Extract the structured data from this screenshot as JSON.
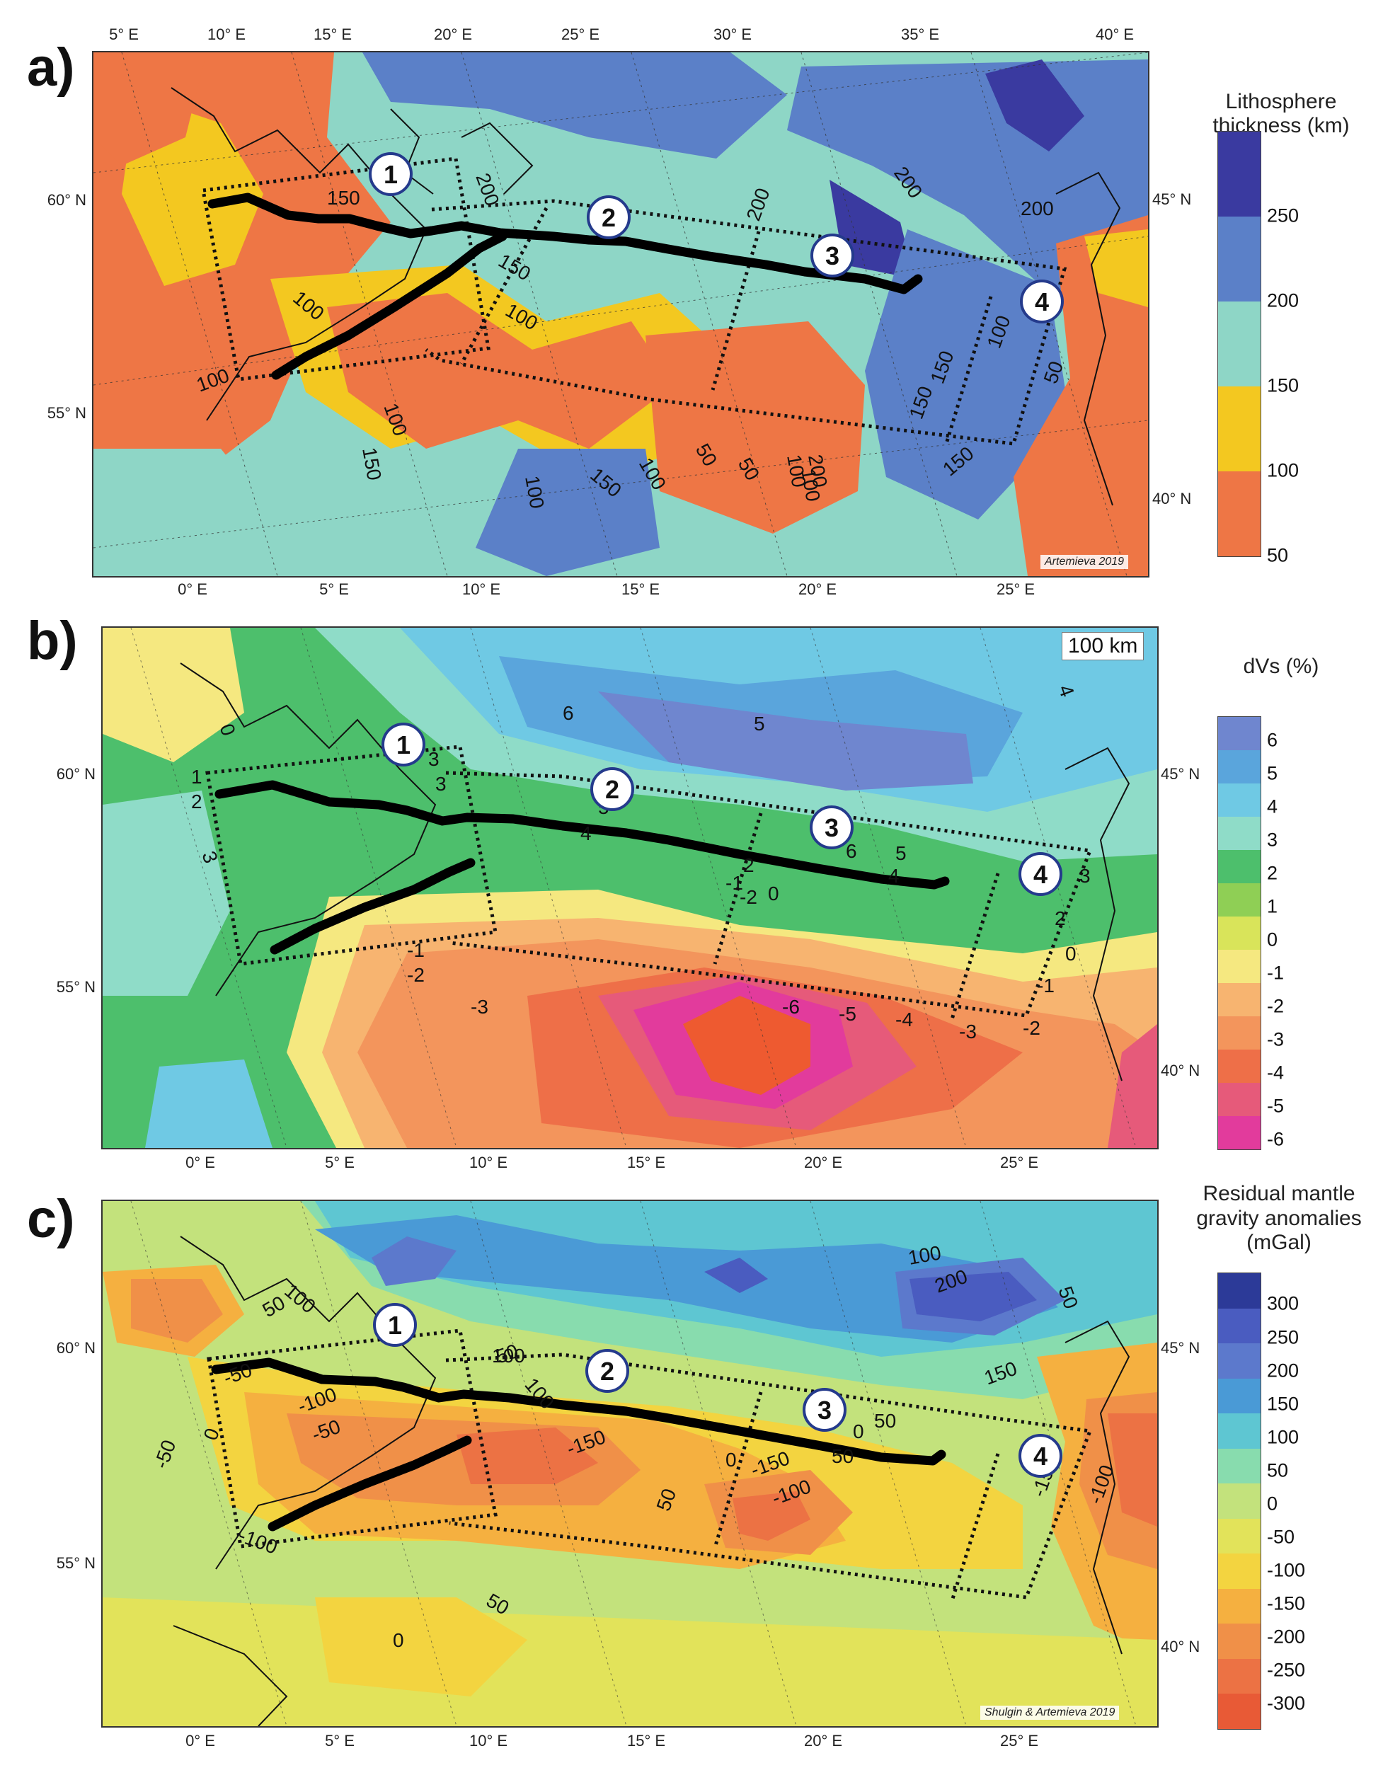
{
  "panels": [
    {
      "letter": "a)",
      "legend_title": "Lithosphere\nthickness (km)",
      "colorbar_labels": [
        "250",
        "200",
        "150",
        "100",
        "50"
      ],
      "colorbar_colors": [
        "#3a3aa0",
        "#5b80c8",
        "#8ed6c6",
        "#f3c820",
        "#ee7645"
      ],
      "credit": "Artemieva 2019",
      "corner_label": "",
      "top_ticks": [
        "5° E",
        "10° E",
        "15° E",
        "20° E",
        "25° E",
        "30° E",
        "35° E",
        "40° E"
      ],
      "bottom_ticks": [
        "0° E",
        "5° E",
        "10° E",
        "15° E",
        "20° E",
        "25° E"
      ],
      "left_ticks": [
        "60° N",
        "55° N"
      ],
      "right_ticks": [
        "45° N",
        "40° N"
      ],
      "profiles": [
        "1",
        "2",
        "3",
        "4"
      ],
      "contour_labels": [
        "200",
        "150",
        "100",
        "100",
        "100",
        "100",
        "150",
        "150",
        "100",
        "150",
        "100",
        "50",
        "50",
        "100",
        "200",
        "200",
        "200",
        "100",
        "150",
        "150",
        "50",
        "200",
        "100",
        "150"
      ]
    },
    {
      "letter": "b)",
      "legend_title": "dVs (%)",
      "colorbar_labels": [
        "6",
        "5",
        "4",
        "3",
        "2",
        "1",
        "0",
        "-1",
        "-2",
        "-3",
        "-4",
        "-5",
        "-6"
      ],
      "colorbar_colors": [
        "#6f86cf",
        "#5aa5dc",
        "#6fc9e4",
        "#8fdcc8",
        "#4dbf6c",
        "#8fcf55",
        "#d9e45a",
        "#f5e880",
        "#f7b470",
        "#f3955c",
        "#ee6f48",
        "#e65a7a",
        "#e23b9c"
      ],
      "credit": "",
      "corner_label": "100 km",
      "top_ticks": [],
      "bottom_ticks": [
        "0° E",
        "5° E",
        "10° E",
        "15° E",
        "20° E",
        "25° E"
      ],
      "left_ticks": [
        "60° N",
        "55° N"
      ],
      "right_ticks": [
        "45° N",
        "40° N"
      ],
      "profiles": [
        "1",
        "2",
        "3",
        "4"
      ],
      "contour_labels": [
        "0",
        "1",
        "2",
        "3",
        "3",
        "3",
        "6",
        "5",
        "5",
        "4",
        "6",
        "5",
        "4",
        "2",
        "-1",
        "0",
        "-2",
        "-1",
        "-2",
        "-3",
        "-6",
        "-5",
        "-4",
        "-3",
        "0",
        "-1",
        "-2",
        "4",
        "3",
        "2"
      ]
    },
    {
      "letter": "c)",
      "legend_title": "Residual mantle\ngravity anomalies\n(mGal)",
      "colorbar_labels": [
        "300",
        "250",
        "200",
        "150",
        "100",
        "50",
        "0",
        "-50",
        "-100",
        "-150",
        "-200",
        "-250",
        "-300"
      ],
      "colorbar_colors": [
        "#2c3a98",
        "#4a5cc0",
        "#5c79cc",
        "#4a9ad6",
        "#5ec6d2",
        "#88dcae",
        "#c3e27c",
        "#e2e35a",
        "#f3d440",
        "#f5b040",
        "#f09048",
        "#ec7244",
        "#e85a36"
      ],
      "credit": "Shulgin & Artemieva 2019",
      "corner_label": "",
      "top_ticks": [],
      "bottom_ticks": [
        "0° E",
        "5° E",
        "10° E",
        "15° E",
        "20° E",
        "25° E"
      ],
      "left_ticks": [
        "60° N",
        "55° N"
      ],
      "right_ticks": [
        "45° N",
        "40° N"
      ],
      "profiles": [
        "1",
        "2",
        "3",
        "4"
      ],
      "contour_labels": [
        "100",
        "50",
        "100",
        "-50",
        "0",
        "-50",
        "-100",
        "-50",
        "-100",
        "100",
        "50",
        "200",
        "150",
        "50",
        "100",
        "50",
        "-150",
        "0",
        "50",
        "-150",
        "-100",
        "50",
        "0",
        "50",
        "0",
        "-150",
        "-100"
      ]
    }
  ]
}
